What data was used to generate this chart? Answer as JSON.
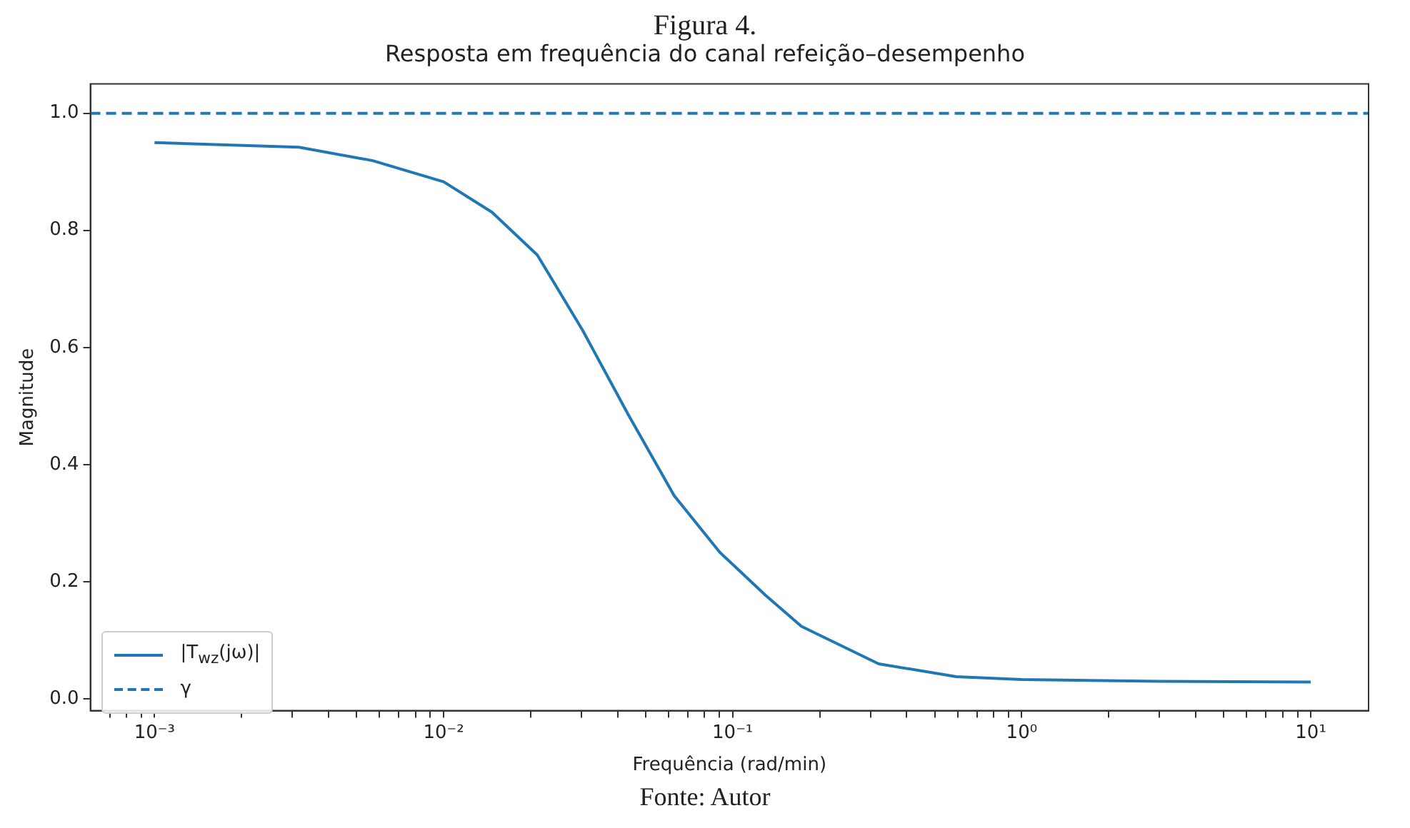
{
  "chart_data": {
    "type": "line",
    "title": "Figura 4.",
    "subtitle": "Resposta em frequência do canal refeição–desempenho",
    "xlabel": "Frequência (rad/min)",
    "ylabel": "Magnitude",
    "annotations": [
      "Fonte: Autor"
    ],
    "x": [
      0.001,
      0.00316,
      0.00569,
      0.01,
      0.0147,
      0.0211,
      0.0303,
      0.0437,
      0.0628,
      0.0904,
      0.13,
      0.173,
      0.32,
      0.594,
      1,
      3,
      10
    ],
    "series": [
      {
        "name": "|T$_{wz}$(jω)|",
        "color": "#1f77b4",
        "values": [
          0.95,
          0.942,
          0.919,
          0.883,
          0.831,
          0.758,
          0.629,
          0.484,
          0.347,
          0.25,
          0.177,
          0.124,
          0.06,
          0.038,
          0.033,
          0.03,
          0.029
        ]
      }
    ],
    "ref_lines": [
      {
        "axis": "y",
        "value": 1.0,
        "label": "γ",
        "color": "#1f77b4",
        "line_style": "dashed"
      }
    ],
    "log": "x",
    "xlim": [
      0.00063,
      15.85
    ],
    "ylim": [
      -0.02,
      1.05
    ],
    "xticks": [
      {
        "value": 0.0007,
        "label": null
      },
      {
        "value": 0.0008,
        "label": null
      },
      {
        "value": 0.0009,
        "label": null
      },
      {
        "value": 0.001,
        "label": "10⁻³"
      },
      {
        "value": 0.002,
        "label": null
      },
      {
        "value": 0.003,
        "label": null
      },
      {
        "value": 0.004,
        "label": null
      },
      {
        "value": 0.005,
        "label": null
      },
      {
        "value": 0.006,
        "label": null
      },
      {
        "value": 0.007,
        "label": null
      },
      {
        "value": 0.008,
        "label": null
      },
      {
        "value": 0.009,
        "label": null
      },
      {
        "value": 0.01,
        "label": "10⁻²"
      },
      {
        "value": 0.02,
        "label": null
      },
      {
        "value": 0.03,
        "label": null
      },
      {
        "value": 0.04,
        "label": null
      },
      {
        "value": 0.05,
        "label": null
      },
      {
        "value": 0.06,
        "label": null
      },
      {
        "value": 0.07,
        "label": null
      },
      {
        "value": 0.08,
        "label": null
      },
      {
        "value": 0.09,
        "label": null
      },
      {
        "value": 0.1,
        "label": "10⁻¹"
      },
      {
        "value": 0.2,
        "label": null
      },
      {
        "value": 0.3,
        "label": null
      },
      {
        "value": 0.4,
        "label": null
      },
      {
        "value": 0.5,
        "label": null
      },
      {
        "value": 0.6,
        "label": null
      },
      {
        "value": 0.7,
        "label": null
      },
      {
        "value": 0.8,
        "label": null
      },
      {
        "value": 0.9,
        "label": null
      },
      {
        "value": 1,
        "label": "10⁰"
      },
      {
        "value": 2,
        "label": null
      },
      {
        "value": 3,
        "label": null
      },
      {
        "value": 4,
        "label": null
      },
      {
        "value": 5,
        "label": null
      },
      {
        "value": 6,
        "label": null
      },
      {
        "value": 7,
        "label": null
      },
      {
        "value": 8,
        "label": null
      },
      {
        "value": 9,
        "label": null
      },
      {
        "value": 10,
        "label": "10¹"
      }
    ],
    "yticks": [
      {
        "value": 0,
        "label": "0.0"
      },
      0.2,
      0.4,
      0.6,
      0.8,
      {
        "value": 1,
        "label": "1.0"
      }
    ],
    "grid": false,
    "legend": "bottom left",
    "marker": "none",
    "line_style": "solid"
  }
}
